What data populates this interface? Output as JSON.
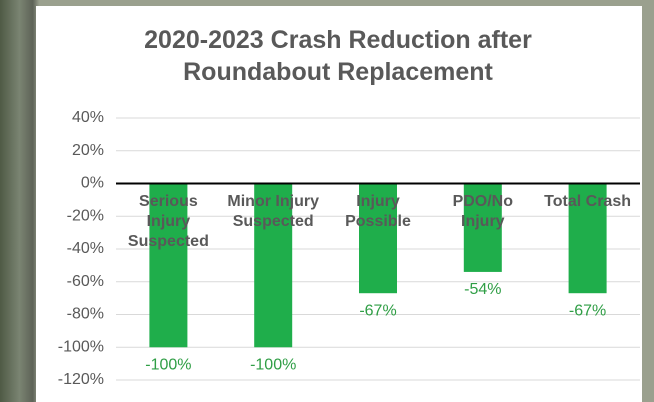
{
  "chart_data": {
    "type": "bar",
    "title": "2020-2023 Crash Reduction after Roundabout Replacement",
    "categories": [
      "Serious Injury Suspected",
      "Minor Injury Suspected",
      "Injury Possible",
      "PDO/No Injury",
      "Total Crash"
    ],
    "values": [
      -100,
      -100,
      -67,
      -54,
      -67
    ],
    "value_labels": [
      "-100%",
      "-100%",
      "-67%",
      "-54%",
      "-67%"
    ],
    "color": "#1fae4b",
    "ylim": [
      -120,
      40
    ],
    "yticks": [
      {
        "value": 40,
        "label": "40%"
      },
      {
        "value": 20,
        "label": "20%"
      },
      {
        "value": 0,
        "label": "0%"
      },
      {
        "value": -20,
        "label": "-20%"
      },
      {
        "value": -40,
        "label": "-40%"
      },
      {
        "value": -60,
        "label": "-60%"
      },
      {
        "value": -80,
        "label": "-80%"
      },
      {
        "value": -100,
        "label": "-100%"
      },
      {
        "value": -120,
        "label": "-120%"
      }
    ],
    "grid": true
  }
}
